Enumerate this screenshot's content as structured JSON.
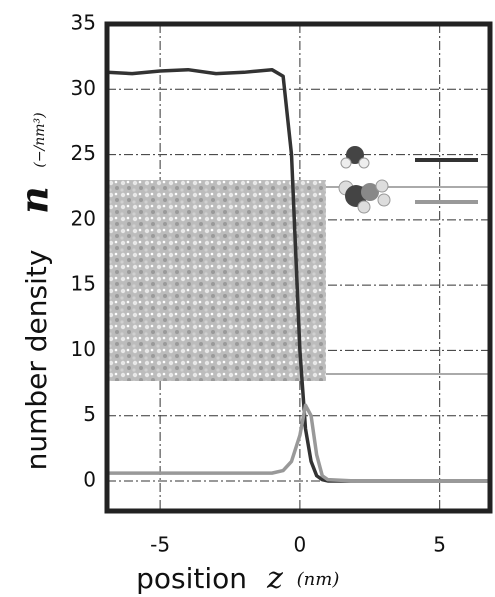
{
  "chart_data": {
    "type": "line",
    "x_label": "position",
    "x_symbol": "z",
    "x_unit": "(nm)",
    "y_label": "number density",
    "y_symbol": "n",
    "y_unit": "(−/nm³)",
    "x": [
      -6.9,
      -6,
      -5,
      -4,
      -3,
      -2,
      -1,
      -0.6,
      -0.3,
      0,
      0.2,
      0.4,
      0.6,
      0.8,
      1,
      2,
      3,
      4,
      5,
      6,
      6.8
    ],
    "series": [
      {
        "color": "#333333",
        "values": [
          31.3,
          31.2,
          31.4,
          31.5,
          31.2,
          31.3,
          31.5,
          31,
          25,
          10,
          4,
          1.5,
          0.4,
          0.1,
          0,
          0,
          0,
          0,
          0,
          0,
          0
        ]
      },
      {
        "color": "#999999",
        "values": [
          0.6,
          0.6,
          0.6,
          0.6,
          0.6,
          0.6,
          0.6,
          0.8,
          1.5,
          3.5,
          5.8,
          5,
          2,
          0.4,
          0.1,
          0,
          0,
          0,
          0,
          0,
          0
        ]
      }
    ],
    "xlim": [
      -6.9,
      6.8
    ],
    "ylim": [
      -2.3,
      35
    ],
    "xticks": [
      -5,
      0,
      5
    ],
    "yticks": [
      0,
      5,
      10,
      15,
      20,
      25,
      30,
      35
    ],
    "grid": true
  }
}
